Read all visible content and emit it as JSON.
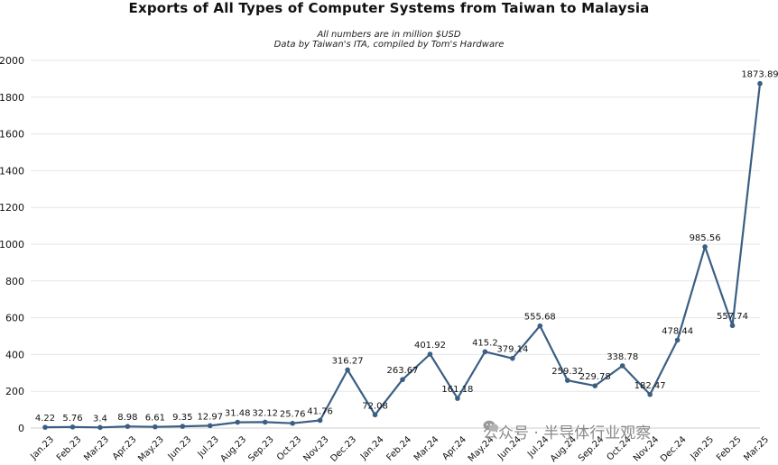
{
  "chart_data": {
    "type": "line",
    "title": "Exports of All Types of Computer Systems from Taiwan to Malaysia",
    "subtitle_lines": [
      "All numbers are in million $USD",
      "Data by Taiwan's ITA, compiled by Tom's Hardware"
    ],
    "categories": [
      "Jan.23",
      "Feb.23",
      "Mar.23",
      "Apr.23",
      "May.23",
      "Jun.23",
      "Jul.23",
      "Aug.23",
      "Sep.23",
      "Oct.23",
      "Nov.23",
      "Dec.23",
      "Jan.24",
      "Feb.24",
      "Mar.24",
      "Apr.24",
      "May.24",
      "Jun.24",
      "Jul.24",
      "Aug.24",
      "Sep.24",
      "Oct.24",
      "Nov.24",
      "Dec.24",
      "Jan.25",
      "Feb.25",
      "Mar.25"
    ],
    "values": [
      4.22,
      5.76,
      3.4,
      8.98,
      6.61,
      9.35,
      12.97,
      31.48,
      32.12,
      25.76,
      41.76,
      316.27,
      72.08,
      263.67,
      401.92,
      161.18,
      415.2,
      379.14,
      555.68,
      259.32,
      229.78,
      338.78,
      182.47,
      478.44,
      985.56,
      557.74,
      1873.89
    ],
    "data_labels": [
      "4.22",
      "5.76",
      "3.4",
      "8.98",
      "6.61",
      "9.35",
      "12.97",
      "31.48",
      "32.12",
      "25.76",
      "41.76",
      "316.27",
      "72.08",
      "263.67",
      "401.92",
      "161.18",
      "415.2",
      "379.14",
      "555.68",
      "259.32",
      "229.78",
      "338.78",
      "182.47",
      "478.44",
      "985.56",
      "557.74",
      "1873.89"
    ],
    "yticks": [
      "0",
      "200",
      "400",
      "600",
      "800",
      "1000",
      "1200",
      "1400",
      "1600",
      "1800",
      "2000"
    ],
    "ylim": [
      0,
      2000
    ],
    "xlabel": "",
    "ylabel": "",
    "grid": true,
    "line_color": "#3b5f83"
  },
  "watermark": {
    "text": "公众号 · 半导体行业观察",
    "icon": "wechat-icon"
  }
}
